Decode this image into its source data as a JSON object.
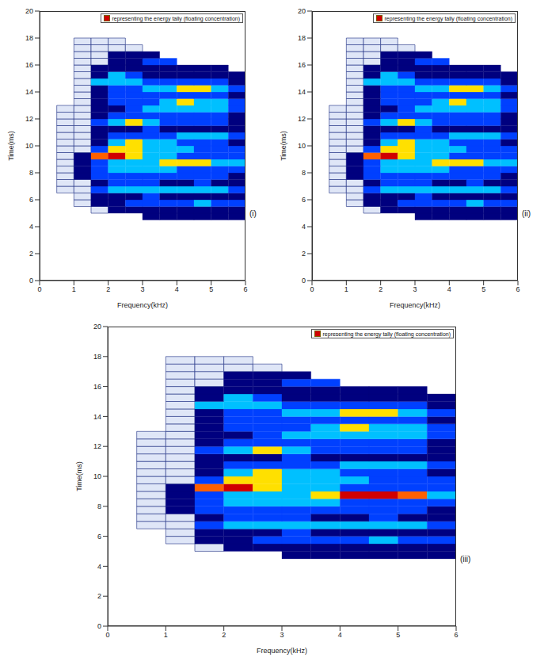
{
  "chart_data": [
    {
      "type": "heatmap",
      "panel": "(i)",
      "x_label": "Frequency(kHz)",
      "y_label": "Time(ms)",
      "xlim": [
        0,
        6
      ],
      "xticks": [
        0,
        1,
        2,
        3,
        4,
        5,
        6
      ],
      "ylim": [
        0,
        20
      ],
      "yticks": [
        0,
        2,
        4,
        6,
        8,
        10,
        12,
        14,
        16,
        18,
        20
      ],
      "legend": "upper right",
      "legend_text": "representing the energy tally (floating concentration)",
      "legend_color": "#d00000",
      "colors": [
        "#ffffff",
        "#dfe6f7",
        "#00007f",
        "#0040ff",
        "#00c0ff",
        "#ffe000",
        "#ff6000",
        "#d00000"
      ],
      "x_edges": [
        0,
        0.5,
        1,
        1.5,
        2,
        2.5,
        3,
        3.5,
        4,
        4.5,
        5,
        5.5,
        6
      ],
      "y_edges": [
        4.5,
        5,
        5.5,
        6,
        6.5,
        7,
        7.5,
        8,
        8.5,
        9,
        9.5,
        10,
        10.5,
        11,
        11.5,
        12,
        12.5,
        13,
        13.5,
        14,
        14.5,
        15,
        15.5,
        16,
        16.5,
        17,
        17.5,
        18
      ],
      "cells": [
        [
          0,
          0,
          0,
          0,
          0,
          0,
          2,
          2,
          2,
          2,
          2,
          2
        ],
        [
          0,
          0,
          0,
          1,
          2,
          2,
          2,
          2,
          2,
          2,
          2,
          2
        ],
        [
          0,
          0,
          1,
          2,
          2,
          3,
          3,
          3,
          3,
          4,
          3,
          3
        ],
        [
          0,
          0,
          1,
          2,
          2,
          2,
          3,
          2,
          2,
          2,
          2,
          2
        ],
        [
          0,
          1,
          1,
          3,
          4,
          4,
          4,
          4,
          4,
          4,
          4,
          3
        ],
        [
          0,
          1,
          1,
          2,
          3,
          3,
          3,
          2,
          2,
          3,
          2,
          2
        ],
        [
          0,
          1,
          2,
          3,
          3,
          3,
          3,
          3,
          3,
          3,
          3,
          2
        ],
        [
          0,
          1,
          2,
          3,
          4,
          4,
          4,
          4,
          3,
          3,
          3,
          3
        ],
        [
          0,
          1,
          2,
          3,
          4,
          4,
          4,
          5,
          5,
          5,
          4,
          4
        ],
        [
          0,
          1,
          2,
          6,
          7,
          5,
          4,
          4,
          3,
          3,
          3,
          3
        ],
        [
          0,
          1,
          1,
          3,
          5,
          5,
          4,
          4,
          4,
          3,
          3,
          3
        ],
        [
          0,
          1,
          1,
          2,
          4,
          5,
          4,
          4,
          3,
          3,
          3,
          2
        ],
        [
          0,
          1,
          1,
          2,
          3,
          3,
          3,
          3,
          4,
          4,
          4,
          3
        ],
        [
          0,
          1,
          1,
          2,
          2,
          2,
          3,
          2,
          2,
          2,
          2,
          2
        ],
        [
          0,
          1,
          1,
          3,
          4,
          5,
          4,
          3,
          3,
          3,
          3,
          2
        ],
        [
          0,
          1,
          1,
          2,
          3,
          3,
          3,
          3,
          3,
          3,
          3,
          2
        ],
        [
          0,
          1,
          1,
          2,
          2,
          3,
          4,
          4,
          4,
          4,
          4,
          3
        ],
        [
          0,
          0,
          1,
          2,
          3,
          3,
          3,
          4,
          5,
          4,
          4,
          3
        ],
        [
          0,
          0,
          1,
          2,
          3,
          3,
          3,
          3,
          3,
          3,
          3,
          2
        ],
        [
          0,
          0,
          1,
          2,
          3,
          3,
          4,
          4,
          5,
          5,
          4,
          3
        ],
        [
          0,
          0,
          1,
          4,
          4,
          4,
          3,
          3,
          3,
          3,
          3,
          2
        ],
        [
          0,
          0,
          1,
          2,
          4,
          3,
          2,
          2,
          2,
          2,
          2,
          2
        ],
        [
          0,
          0,
          1,
          2,
          2,
          2,
          2,
          2,
          2,
          2,
          2,
          0
        ],
        [
          0,
          0,
          1,
          1,
          2,
          2,
          3,
          3,
          0,
          0,
          0,
          0
        ],
        [
          0,
          0,
          1,
          1,
          2,
          2,
          2,
          0,
          0,
          0,
          0,
          0
        ],
        [
          0,
          0,
          1,
          1,
          1,
          1,
          0,
          0,
          0,
          0,
          0,
          0
        ],
        [
          0,
          0,
          1,
          1,
          1,
          0,
          0,
          0,
          0,
          0,
          0,
          0
        ]
      ]
    },
    {
      "type": "heatmap",
      "panel": "(ii)",
      "x_label": "Frequency(kHz)",
      "y_label": "Time(ms)",
      "xlim": [
        0,
        6
      ],
      "xticks": [
        0,
        1,
        2,
        3,
        4,
        5,
        6
      ],
      "ylim": [
        0,
        20
      ],
      "yticks": [
        0,
        2,
        4,
        6,
        8,
        10,
        12,
        14,
        16,
        18,
        20
      ],
      "legend": "upper right",
      "legend_text": "representing the energy tally (floating concentration)",
      "legend_color": "#d00000",
      "colors": [
        "#ffffff",
        "#dfe6f7",
        "#00007f",
        "#0040ff",
        "#00c0ff",
        "#ffe000",
        "#ff6000",
        "#d00000"
      ],
      "x_edges": [
        0,
        0.5,
        1,
        1.5,
        2,
        2.5,
        3,
        3.5,
        4,
        4.5,
        5,
        5.5,
        6
      ],
      "y_edges": [
        4.5,
        5,
        5.5,
        6,
        6.5,
        7,
        7.5,
        8,
        8.5,
        9,
        9.5,
        10,
        10.5,
        11,
        11.5,
        12,
        12.5,
        13,
        13.5,
        14,
        14.5,
        15,
        15.5,
        16,
        16.5,
        17,
        17.5,
        18
      ],
      "cells": [
        [
          0,
          0,
          0,
          0,
          0,
          0,
          2,
          2,
          2,
          2,
          2,
          2
        ],
        [
          0,
          0,
          0,
          1,
          2,
          2,
          2,
          2,
          2,
          2,
          2,
          2
        ],
        [
          0,
          0,
          1,
          2,
          2,
          3,
          3,
          3,
          3,
          4,
          3,
          3
        ],
        [
          0,
          0,
          1,
          2,
          2,
          2,
          3,
          2,
          2,
          2,
          2,
          2
        ],
        [
          0,
          1,
          1,
          3,
          4,
          4,
          4,
          4,
          4,
          4,
          4,
          3
        ],
        [
          0,
          1,
          1,
          2,
          3,
          3,
          3,
          2,
          2,
          3,
          2,
          2
        ],
        [
          0,
          1,
          2,
          3,
          3,
          3,
          3,
          3,
          3,
          3,
          3,
          2
        ],
        [
          0,
          1,
          2,
          3,
          4,
          4,
          4,
          4,
          3,
          3,
          3,
          3
        ],
        [
          0,
          1,
          2,
          3,
          4,
          4,
          4,
          5,
          5,
          5,
          4,
          4
        ],
        [
          0,
          1,
          2,
          6,
          7,
          5,
          4,
          4,
          3,
          3,
          3,
          3
        ],
        [
          0,
          1,
          1,
          3,
          5,
          5,
          4,
          4,
          4,
          3,
          3,
          3
        ],
        [
          0,
          1,
          1,
          2,
          4,
          5,
          4,
          4,
          3,
          3,
          3,
          2
        ],
        [
          0,
          1,
          1,
          2,
          3,
          3,
          3,
          3,
          4,
          4,
          4,
          3
        ],
        [
          0,
          1,
          1,
          2,
          2,
          2,
          3,
          2,
          2,
          2,
          2,
          2
        ],
        [
          0,
          1,
          1,
          3,
          4,
          5,
          4,
          3,
          3,
          3,
          3,
          2
        ],
        [
          0,
          1,
          1,
          2,
          3,
          3,
          3,
          3,
          3,
          3,
          3,
          2
        ],
        [
          0,
          1,
          1,
          2,
          2,
          3,
          4,
          4,
          4,
          4,
          4,
          3
        ],
        [
          0,
          0,
          1,
          2,
          3,
          3,
          3,
          4,
          5,
          4,
          4,
          3
        ],
        [
          0,
          0,
          1,
          2,
          3,
          3,
          3,
          3,
          3,
          3,
          3,
          2
        ],
        [
          0,
          0,
          1,
          2,
          3,
          3,
          4,
          4,
          5,
          5,
          4,
          3
        ],
        [
          0,
          0,
          1,
          4,
          4,
          4,
          3,
          3,
          3,
          3,
          3,
          2
        ],
        [
          0,
          0,
          1,
          2,
          4,
          3,
          2,
          2,
          2,
          2,
          2,
          2
        ],
        [
          0,
          0,
          1,
          2,
          2,
          2,
          2,
          2,
          2,
          2,
          2,
          0
        ],
        [
          0,
          0,
          1,
          1,
          2,
          2,
          3,
          3,
          0,
          0,
          0,
          0
        ],
        [
          0,
          0,
          1,
          1,
          2,
          2,
          2,
          0,
          0,
          0,
          0,
          0
        ],
        [
          0,
          0,
          1,
          1,
          1,
          1,
          0,
          0,
          0,
          0,
          0,
          0
        ],
        [
          0,
          0,
          1,
          1,
          1,
          0,
          0,
          0,
          0,
          0,
          0,
          0
        ]
      ]
    },
    {
      "type": "heatmap",
      "panel": "(iii)",
      "x_label": "Frequency(kHz)",
      "y_label": "Time(ms)",
      "xlim": [
        0,
        6
      ],
      "xticks": [
        0,
        1,
        2,
        3,
        4,
        5,
        6
      ],
      "ylim": [
        0,
        20
      ],
      "yticks": [
        0,
        2,
        4,
        6,
        8,
        10,
        12,
        14,
        16,
        18,
        20
      ],
      "legend": "upper right",
      "legend_text": "representing the energy tally (floating concentration)",
      "legend_color": "#d00000",
      "colors": [
        "#ffffff",
        "#dfe6f7",
        "#00007f",
        "#0040ff",
        "#00c0ff",
        "#ffe000",
        "#ff6000",
        "#d00000"
      ],
      "x_edges": [
        0,
        0.5,
        1,
        1.5,
        2,
        2.5,
        3,
        3.5,
        4,
        4.5,
        5,
        5.5,
        6
      ],
      "y_edges": [
        4.5,
        5,
        5.5,
        6,
        6.5,
        7,
        7.5,
        8,
        8.5,
        9,
        9.5,
        10,
        10.5,
        11,
        11.5,
        12,
        12.5,
        13,
        13.5,
        14,
        14.5,
        15,
        15.5,
        16,
        16.5,
        17,
        17.5,
        18
      ],
      "cells": [
        [
          0,
          0,
          0,
          0,
          0,
          0,
          2,
          2,
          2,
          2,
          2,
          2
        ],
        [
          0,
          0,
          0,
          1,
          2,
          2,
          2,
          2,
          2,
          2,
          2,
          2
        ],
        [
          0,
          0,
          1,
          2,
          2,
          3,
          3,
          3,
          3,
          4,
          3,
          3
        ],
        [
          0,
          0,
          1,
          2,
          2,
          2,
          3,
          2,
          2,
          2,
          2,
          2
        ],
        [
          0,
          1,
          1,
          3,
          4,
          4,
          4,
          4,
          4,
          4,
          4,
          3
        ],
        [
          0,
          1,
          1,
          2,
          3,
          3,
          3,
          2,
          2,
          3,
          2,
          2
        ],
        [
          0,
          1,
          2,
          3,
          3,
          3,
          3,
          3,
          3,
          3,
          3,
          2
        ],
        [
          0,
          1,
          2,
          3,
          4,
          4,
          4,
          4,
          3,
          3,
          3,
          3
        ],
        [
          0,
          1,
          2,
          3,
          4,
          4,
          4,
          5,
          7,
          7,
          6,
          4
        ],
        [
          0,
          1,
          2,
          6,
          7,
          5,
          4,
          4,
          3,
          3,
          3,
          3
        ],
        [
          0,
          1,
          1,
          3,
          5,
          5,
          4,
          4,
          4,
          3,
          3,
          3
        ],
        [
          0,
          1,
          1,
          2,
          4,
          5,
          4,
          4,
          3,
          3,
          3,
          2
        ],
        [
          0,
          1,
          1,
          2,
          3,
          3,
          3,
          3,
          4,
          4,
          4,
          3
        ],
        [
          0,
          1,
          1,
          2,
          2,
          2,
          3,
          2,
          2,
          2,
          2,
          2
        ],
        [
          0,
          1,
          1,
          3,
          4,
          5,
          4,
          3,
          3,
          3,
          3,
          2
        ],
        [
          0,
          1,
          1,
          2,
          3,
          3,
          3,
          3,
          3,
          3,
          3,
          2
        ],
        [
          0,
          1,
          1,
          2,
          2,
          3,
          4,
          4,
          4,
          4,
          4,
          3
        ],
        [
          0,
          0,
          1,
          2,
          3,
          3,
          3,
          4,
          5,
          4,
          4,
          3
        ],
        [
          0,
          0,
          1,
          2,
          3,
          3,
          3,
          3,
          3,
          3,
          3,
          2
        ],
        [
          0,
          0,
          1,
          2,
          3,
          3,
          4,
          4,
          5,
          5,
          4,
          3
        ],
        [
          0,
          0,
          1,
          4,
          4,
          4,
          3,
          3,
          3,
          3,
          3,
          2
        ],
        [
          0,
          0,
          1,
          2,
          4,
          3,
          2,
          2,
          2,
          2,
          2,
          2
        ],
        [
          0,
          0,
          1,
          2,
          2,
          2,
          2,
          2,
          2,
          2,
          2,
          0
        ],
        [
          0,
          0,
          1,
          1,
          2,
          2,
          3,
          3,
          0,
          0,
          0,
          0
        ],
        [
          0,
          0,
          1,
          1,
          2,
          2,
          2,
          0,
          0,
          0,
          0,
          0
        ],
        [
          0,
          0,
          1,
          1,
          1,
          1,
          0,
          0,
          0,
          0,
          0,
          0
        ],
        [
          0,
          0,
          1,
          1,
          1,
          0,
          0,
          0,
          0,
          0,
          0,
          0
        ]
      ]
    }
  ]
}
